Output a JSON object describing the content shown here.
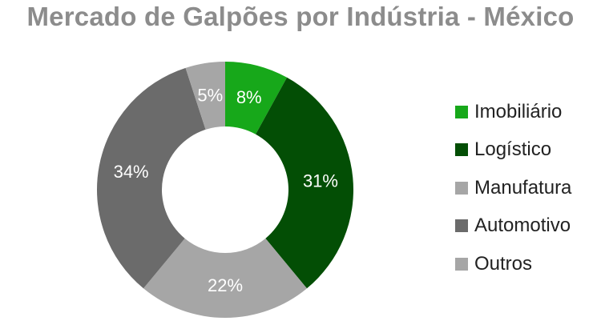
{
  "chart_data": {
    "type": "pie",
    "title": "Mercado de Galpões por Indústria - México",
    "categories": [
      "Imobiliário",
      "Logístico",
      "Manufatura",
      "Automotivo",
      "Outros"
    ],
    "values": [
      8,
      31,
      22,
      34,
      5
    ],
    "data_labels": [
      "8%",
      "31%",
      "22%",
      "34%",
      "5%"
    ],
    "colors": [
      "#17a81a",
      "#034e05",
      "#a6a6a6",
      "#6b6b6b",
      "#a6a6a6"
    ],
    "label_colors": [
      "#ffffff",
      "#ffffff",
      "#ffffff",
      "#ffffff",
      "#ffffff"
    ],
    "donut": true,
    "legend_position": "right"
  }
}
